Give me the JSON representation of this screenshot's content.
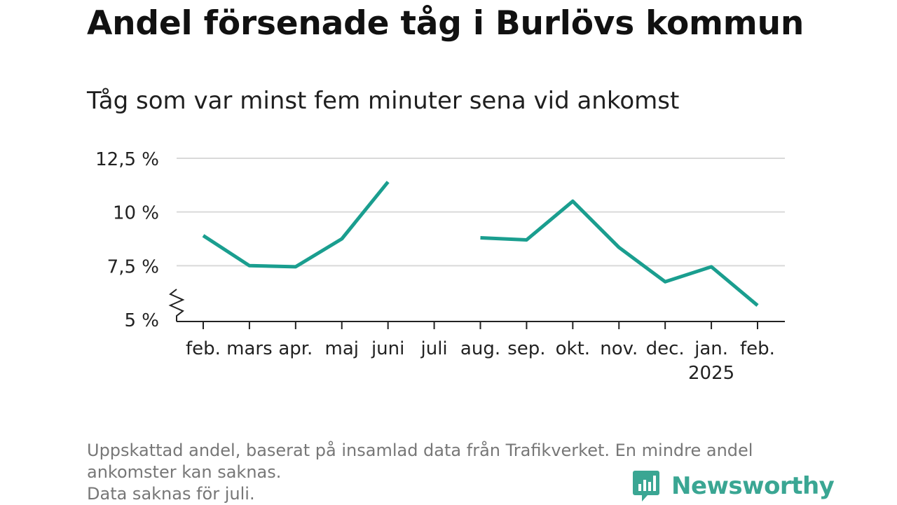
{
  "title": "Andel försenade tåg i Burlövs kommun",
  "subtitle": "Tåg som var minst fem minuter sena vid ankomst",
  "chart_data": {
    "type": "line",
    "title": "Andel försenade tåg i Burlövs kommun",
    "subtitle": "Tåg som var minst fem minuter sena vid ankomst",
    "categories": [
      "feb.",
      "mars",
      "apr.",
      "maj",
      "juni",
      "juli",
      "aug.",
      "sep.",
      "okt.",
      "nov.",
      "dec.",
      "jan.",
      "feb."
    ],
    "category_sublabels": [
      "",
      "",
      "",
      "",
      "",
      "",
      "",
      "",
      "",
      "",
      "",
      "2025",
      ""
    ],
    "series": [
      {
        "values": [
          8.9,
          7.5,
          7.45,
          8.75,
          11.4,
          null,
          8.8,
          8.7,
          10.5,
          8.35,
          6.75,
          7.45,
          5.65
        ]
      }
    ],
    "y_ticks": [
      5,
      7.5,
      10,
      12.5
    ],
    "y_tick_labels": [
      "5 %",
      "7,5 %",
      "10 %",
      "12,5 %"
    ],
    "ylim": [
      5,
      12.5
    ],
    "grid": true,
    "axis_break": true,
    "color": "#1a9e8f"
  },
  "notes": [
    "Uppskattad andel, baserat på insamlad data från Trafikverket. En mindre andel",
    "ankomster kan saknas.",
    "Data saknas för juli."
  ],
  "brand": {
    "name": "Newsworthy",
    "color": "#3aa693"
  }
}
